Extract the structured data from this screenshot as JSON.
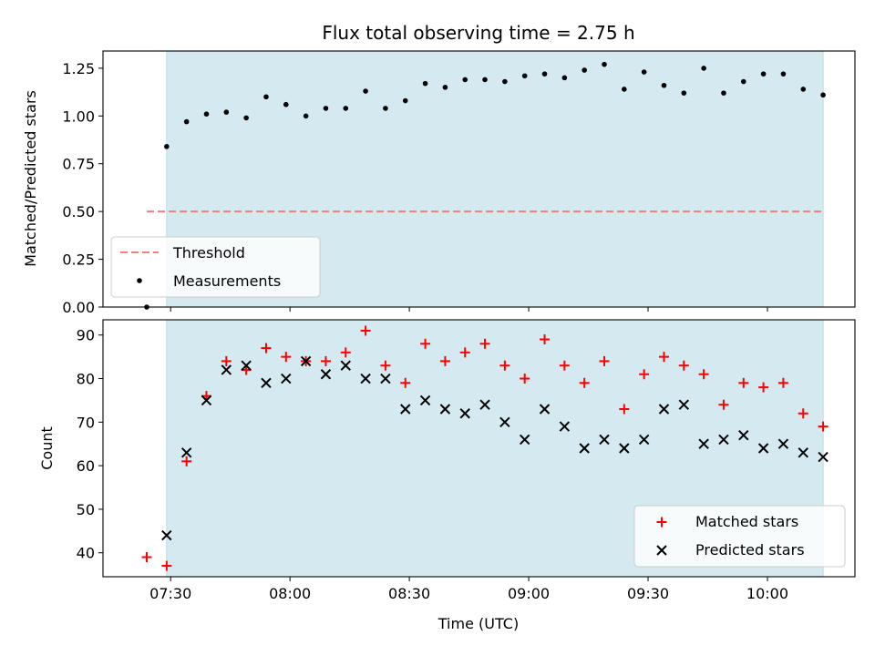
{
  "colors": {
    "shade": "#d4eaf0",
    "shade_edge": "#bcdbe4",
    "threshold": "#f08080",
    "measurement": "#000000",
    "matched": "#ff0000",
    "predicted": "#000000"
  },
  "chart_data": [
    {
      "type": "scatter",
      "title": "Flux total observing time = 2.75 h",
      "ylabel": "Matched/Predicted stars",
      "ylim": [
        0,
        1.34
      ],
      "yticks": [
        0.0,
        0.25,
        0.5,
        0.75,
        1.0,
        1.25
      ],
      "ytick_labels": [
        "0.00",
        "0.25",
        "0.50",
        "0.75",
        "1.00",
        "1.25"
      ],
      "xlim": [
        "07:13",
        "10:22"
      ],
      "xticks": [
        "07:30",
        "08:00",
        "08:30",
        "09:00",
        "09:30",
        "10:00"
      ],
      "shaded_span": [
        "07:29",
        "10:14"
      ],
      "threshold": {
        "name": "Threshold",
        "value": 0.5,
        "x_range": [
          "07:24",
          "10:14"
        ]
      },
      "legend": {
        "placement": "lower-left",
        "entries": [
          "Threshold",
          "Measurements"
        ]
      },
      "series": [
        {
          "name": "Measurements",
          "marker": "dot",
          "x": [
            "07:24",
            "07:29",
            "07:34",
            "07:39",
            "07:44",
            "07:49",
            "07:54",
            "07:59",
            "08:04",
            "08:09",
            "08:14",
            "08:19",
            "08:24",
            "08:29",
            "08:34",
            "08:39",
            "08:44",
            "08:49",
            "08:54",
            "08:59",
            "09:04",
            "09:09",
            "09:14",
            "09:19",
            "09:24",
            "09:29",
            "09:34",
            "09:39",
            "09:44",
            "09:49",
            "09:54",
            "09:59",
            "10:04",
            "10:09",
            "10:14"
          ],
          "y": [
            0.0,
            0.84,
            0.97,
            1.01,
            1.02,
            0.99,
            1.1,
            1.06,
            1.0,
            1.04,
            1.04,
            1.13,
            1.04,
            1.08,
            1.17,
            1.15,
            1.19,
            1.19,
            1.18,
            1.21,
            1.22,
            1.2,
            1.24,
            1.27,
            1.14,
            1.23,
            1.16,
            1.12,
            1.25,
            1.12,
            1.18,
            1.22,
            1.22,
            1.14,
            1.11
          ]
        }
      ]
    },
    {
      "type": "scatter",
      "xlabel": "Time (UTC)",
      "ylabel": "Count",
      "ylim": [
        34.5,
        93.5
      ],
      "yticks": [
        40,
        50,
        60,
        70,
        80,
        90
      ],
      "ytick_labels": [
        "40",
        "50",
        "60",
        "70",
        "80",
        "90"
      ],
      "xlim": [
        "07:13",
        "10:22"
      ],
      "xticks": [
        "07:30",
        "08:00",
        "08:30",
        "09:00",
        "09:30",
        "10:00"
      ],
      "xtick_labels": [
        "07:30",
        "08:00",
        "08:30",
        "09:00",
        "09:30",
        "10:00"
      ],
      "shaded_span": [
        "07:29",
        "10:14"
      ],
      "legend": {
        "placement": "lower-right",
        "entries": [
          "Matched stars",
          "Predicted stars"
        ]
      },
      "series": [
        {
          "name": "Matched stars",
          "marker": "plus",
          "x": [
            "07:24",
            "07:29",
            "07:34",
            "07:39",
            "07:44",
            "07:49",
            "07:54",
            "07:59",
            "08:04",
            "08:09",
            "08:14",
            "08:19",
            "08:24",
            "08:29",
            "08:34",
            "08:39",
            "08:44",
            "08:49",
            "08:54",
            "08:59",
            "09:04",
            "09:09",
            "09:14",
            "09:19",
            "09:24",
            "09:29",
            "09:34",
            "09:39",
            "09:44",
            "09:49",
            "09:54",
            "09:59",
            "10:04",
            "10:09",
            "10:14"
          ],
          "y": [
            39,
            37,
            61,
            76,
            84,
            82,
            87,
            85,
            84,
            84,
            86,
            91,
            83,
            79,
            88,
            84,
            86,
            88,
            83,
            80,
            89,
            83,
            79,
            84,
            73,
            81,
            85,
            83,
            81,
            74,
            79,
            78,
            79,
            72,
            69
          ]
        },
        {
          "name": "Predicted stars",
          "marker": "x",
          "x": [
            "07:29",
            "07:34",
            "07:39",
            "07:44",
            "07:49",
            "07:54",
            "07:59",
            "08:04",
            "08:09",
            "08:14",
            "08:19",
            "08:24",
            "08:29",
            "08:34",
            "08:39",
            "08:44",
            "08:49",
            "08:54",
            "08:59",
            "09:04",
            "09:09",
            "09:14",
            "09:19",
            "09:24",
            "09:29",
            "09:34",
            "09:39",
            "09:44",
            "09:49",
            "09:54",
            "09:59",
            "10:04",
            "10:09",
            "10:14"
          ],
          "y": [
            44,
            63,
            75,
            82,
            83,
            79,
            80,
            84,
            81,
            83,
            80,
            80,
            73,
            75,
            73,
            72,
            74,
            70,
            66,
            73,
            69,
            64,
            66,
            64,
            66,
            73,
            74,
            65,
            66,
            67,
            64,
            65,
            63,
            62
          ]
        }
      ]
    }
  ]
}
